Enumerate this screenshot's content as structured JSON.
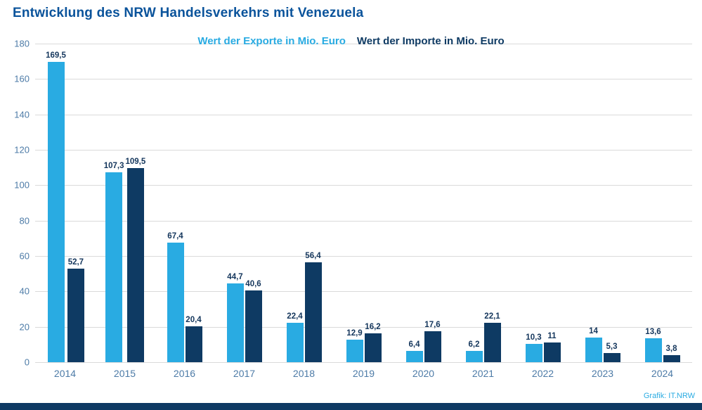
{
  "title": "Entwicklung des NRW Handelsverkehrs mit Venezuela",
  "legend": {
    "exports_label": "Wert der Exporte in Mio. Euro",
    "imports_label": "Wert der Importe in Mio. Euro"
  },
  "footer": {
    "credit": "Grafik: IT.NRW"
  },
  "colors": {
    "export_bar": "#29abe2",
    "import_bar": "#0e3a63",
    "title": "#0a539b",
    "axis_label": "#4d7ba7",
    "value_label": "#14365c",
    "grid": "#dadada",
    "bottom_bar": "#0e3a63",
    "credit": "#29abe2"
  },
  "chart_data": {
    "type": "bar",
    "title": "Entwicklung des NRW Handelsverkehrs mit Venezuela",
    "categories": [
      "2014",
      "2015",
      "2016",
      "2017",
      "2018",
      "2019",
      "2020",
      "2021",
      "2022",
      "2023",
      "2024"
    ],
    "series": [
      {
        "name": "Wert der Exporte in Mio. Euro",
        "values": [
          169.5,
          107.3,
          67.4,
          44.7,
          22.4,
          12.9,
          6.4,
          6.2,
          10.3,
          14,
          13.6
        ],
        "labels": [
          "169,5",
          "107,3",
          "67,4",
          "44,7",
          "22,4",
          "12,9",
          "6,4",
          "6,2",
          "10,3",
          "14",
          "13,6"
        ]
      },
      {
        "name": "Wert der Importe in Mio. Euro",
        "values": [
          52.7,
          109.5,
          20.4,
          40.6,
          56.4,
          16.2,
          17.6,
          22.1,
          11,
          5.3,
          3.8
        ],
        "labels": [
          "52,7",
          "109,5",
          "20,4",
          "40,6",
          "56,4",
          "16,2",
          "17,6",
          "22,1",
          "11",
          "5,3",
          "3,8"
        ]
      }
    ],
    "xlabel": "",
    "ylabel": "",
    "ylim": [
      0,
      180
    ],
    "ytick_step": 20,
    "grid": true,
    "legend_position": "top-center"
  }
}
